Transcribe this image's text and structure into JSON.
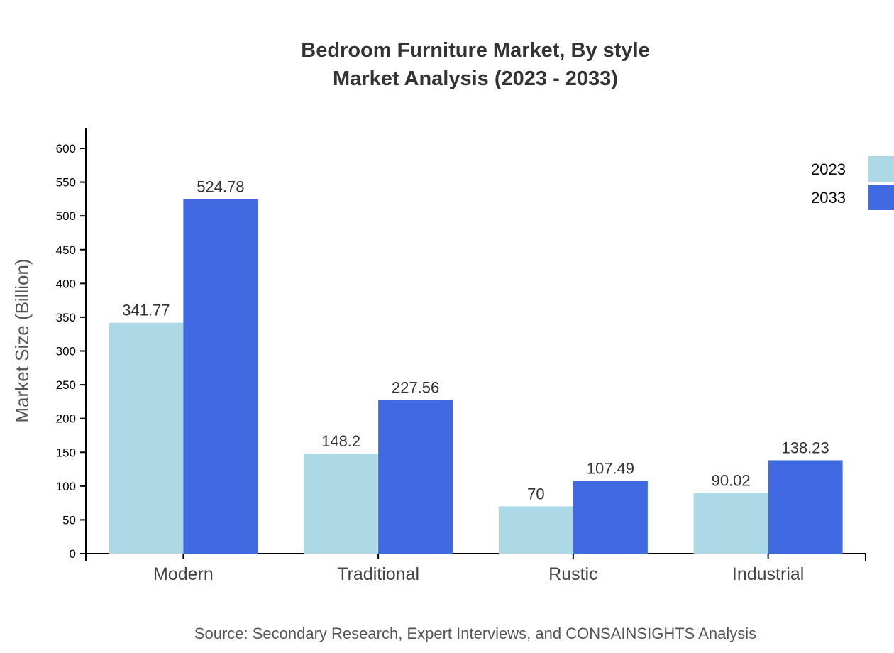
{
  "chart_data": {
    "type": "bar",
    "title": "Bedroom Furniture Market, By style",
    "subtitle": "Market Analysis (2023 - 2033)",
    "xlabel": "",
    "ylabel": "Market Size (Billion)",
    "ylim": [
      0,
      630
    ],
    "yticks": [
      0,
      50,
      100,
      150,
      200,
      250,
      300,
      350,
      400,
      450,
      500,
      550,
      600
    ],
    "categories": [
      "Modern",
      "Traditional",
      "Rustic",
      "Industrial"
    ],
    "series": [
      {
        "name": "2023",
        "color": "#ADD8E6",
        "values": [
          341.77,
          148.2,
          70,
          90.02
        ]
      },
      {
        "name": "2033",
        "color": "#4169E1",
        "values": [
          524.78,
          227.56,
          107.49,
          138.23
        ]
      }
    ],
    "legend": "top-right",
    "grid": false,
    "source": "Source: Secondary Research, Expert Interviews, and CONSAINSIGHTS Analysis"
  }
}
